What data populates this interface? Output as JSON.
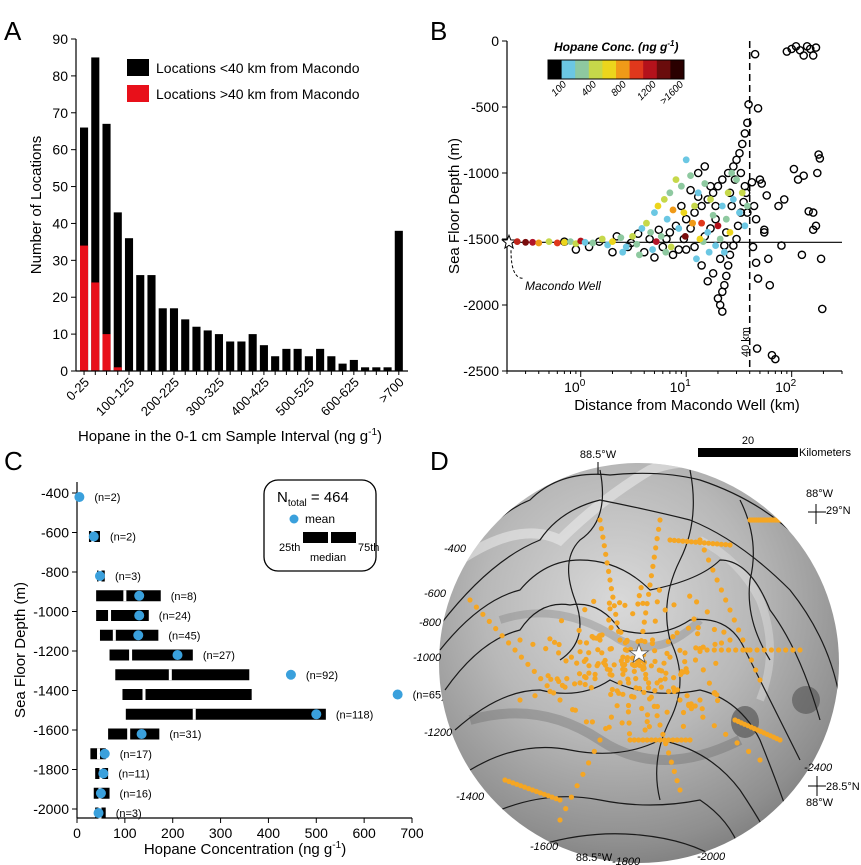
{
  "panels": {
    "a": "A",
    "b": "B",
    "c": "C",
    "d": "D"
  },
  "chart_data": [
    {
      "panel": "A",
      "type": "bar",
      "xlabel": "Hopane in the 0-1 cm Sample Interval (ng g",
      "xlabel_sup": "-1",
      "xlabel_end": ")",
      "ylabel": "Number of Locations",
      "ylim": [
        0,
        90
      ],
      "yticks": [
        0,
        10,
        20,
        30,
        40,
        50,
        60,
        70,
        80,
        90
      ],
      "tick_labels": [
        "0-25",
        "100-125",
        "200-225",
        "300-325",
        "400-425",
        "500-525",
        "600-625",
        ">700"
      ],
      "tick_label_bins": [
        0,
        4,
        8,
        12,
        16,
        20,
        24,
        28
      ],
      "legend": [
        "Locations <40 km from Macondo",
        "Locations >40 km from Macondo"
      ],
      "legend_position": "top-right",
      "colors": {
        "near": "#000000",
        "far": "#e8101a"
      },
      "series": [
        {
          "name": "Locations <40 km from Macondo",
          "values": [
            66,
            85,
            67,
            43,
            36,
            26,
            26,
            17,
            17,
            14,
            12,
            11,
            10,
            8,
            8,
            10,
            7,
            4,
            6,
            6,
            4,
            6,
            4,
            2,
            3,
            1,
            1,
            1,
            38
          ]
        },
        {
          "name": "Locations >40 km from Macondo",
          "values": [
            34,
            24,
            10,
            1,
            0,
            0,
            0,
            0,
            0,
            0,
            0,
            0,
            0,
            0,
            0,
            0,
            0,
            0,
            0,
            0,
            0,
            0,
            0,
            0,
            0,
            0,
            0,
            0,
            0
          ]
        }
      ]
    },
    {
      "panel": "B",
      "type": "scatter",
      "xlabel": "Distance from Macondo Well (km)",
      "ylabel": "Sea Floor Depth (m)",
      "xscale": "log",
      "xlim": [
        0.2,
        300
      ],
      "xticks": [
        "10",
        "10",
        "10"
      ],
      "xtick_exponents": [
        "0",
        "1",
        "2"
      ],
      "ylim": [
        -2500,
        0
      ],
      "yticks": [
        "0",
        "-500",
        "-1000",
        "-1500",
        "-2000",
        "-2500"
      ],
      "colorbar_title": "Hopane Conc. (ng g",
      "colorbar_sup": "-1",
      "colorbar_end": ")",
      "colorbar_ticks": [
        "100",
        "400",
        "800",
        "1200",
        ">1600"
      ],
      "colorbar_colors": [
        "#000000",
        "#6bc7e3",
        "#8ec9a0",
        "#c6d84a",
        "#ecd51c",
        "#f09a18",
        "#e0381c",
        "#b4121b",
        "#6a0c0c",
        "#2a0000"
      ],
      "vertical_line_label": "40 km",
      "vertical_line_x": 40,
      "horizontal_line_y": -1525,
      "annotation": "Macondo Well",
      "points_far": [
        [
          45,
          -100
        ],
        [
          48,
          -510
        ],
        [
          50,
          -1050
        ],
        [
          52,
          -1080
        ],
        [
          55,
          -1430
        ],
        [
          60,
          -1650
        ],
        [
          62,
          -1850
        ],
        [
          47,
          -2330
        ],
        [
          65,
          -2380
        ],
        [
          70,
          -2410
        ],
        [
          75,
          -1250
        ],
        [
          80,
          -1550
        ],
        [
          55,
          -1450
        ],
        [
          58,
          -1170
        ],
        [
          90,
          -80
        ],
        [
          100,
          -60
        ],
        [
          110,
          -40
        ],
        [
          120,
          -70
        ],
        [
          140,
          -40
        ],
        [
          150,
          -60
        ],
        [
          160,
          -110
        ],
        [
          170,
          -50
        ],
        [
          130,
          -110
        ],
        [
          115,
          -1050
        ],
        [
          130,
          -1020
        ],
        [
          145,
          -1290
        ],
        [
          160,
          -1300
        ],
        [
          170,
          -1400
        ],
        [
          180,
          -860
        ],
        [
          185,
          -890
        ],
        [
          175,
          -1000
        ],
        [
          190,
          -1650
        ],
        [
          195,
          -2030
        ],
        [
          160,
          -1430
        ],
        [
          125,
          -1620
        ],
        [
          105,
          -970
        ],
        [
          85,
          -1200
        ],
        [
          42,
          -1070
        ],
        [
          44,
          -1250
        ],
        [
          46,
          -1350
        ],
        [
          43,
          -1560
        ],
        [
          46,
          -1680
        ],
        [
          48,
          -1800
        ]
      ],
      "points_near_black": [
        [
          0.9,
          -1580
        ],
        [
          1.5,
          -1520
        ],
        [
          2.2,
          -1480
        ],
        [
          3.0,
          -1530
        ],
        [
          4.0,
          -1600
        ],
        [
          5.0,
          -1640
        ],
        [
          6.0,
          -1560
        ],
        [
          7.0,
          -1450
        ],
        [
          8.0,
          -1400
        ],
        [
          10,
          -1350
        ],
        [
          12,
          -1300
        ],
        [
          14,
          -1250
        ],
        [
          16,
          -1200
        ],
        [
          18,
          -1150
        ],
        [
          20,
          -1100
        ],
        [
          22,
          -1050
        ],
        [
          25,
          -1000
        ],
        [
          28,
          -950
        ],
        [
          30,
          -900
        ],
        [
          32,
          -850
        ],
        [
          34,
          -780
        ],
        [
          36,
          -700
        ],
        [
          38,
          -620
        ],
        [
          39,
          -480
        ],
        [
          37,
          -1150
        ],
        [
          35,
          -1220
        ],
        [
          33,
          -1300
        ],
        [
          31,
          -1400
        ],
        [
          30,
          -1500
        ],
        [
          28,
          -1550
        ],
        [
          26,
          -1620
        ],
        [
          25,
          -1700
        ],
        [
          24,
          -1780
        ],
        [
          23,
          -1850
        ],
        [
          22,
          -1900
        ],
        [
          20,
          -1950
        ],
        [
          21,
          -2000
        ],
        [
          22,
          -2050
        ],
        [
          18,
          -1760
        ],
        [
          16,
          -1820
        ],
        [
          14,
          -1700
        ],
        [
          12,
          -1560
        ],
        [
          15,
          -1480
        ],
        [
          17,
          -1420
        ],
        [
          19,
          -1350
        ],
        [
          13,
          -1180
        ],
        [
          11,
          -1130
        ],
        [
          9,
          -1250
        ],
        [
          9.5,
          -1500
        ],
        [
          8.5,
          -1580
        ],
        [
          7.5,
          -1620
        ],
        [
          6.5,
          -1500
        ],
        [
          5.5,
          -1430
        ],
        [
          4.5,
          -1500
        ],
        [
          3.5,
          -1460
        ],
        [
          2.8,
          -1560
        ],
        [
          2.0,
          -1600
        ],
        [
          1.2,
          -1560
        ],
        [
          0.7,
          -1520
        ],
        [
          26,
          -1150
        ],
        [
          29,
          -1050
        ],
        [
          33,
          -1000
        ],
        [
          36,
          -1100
        ],
        [
          38,
          -1300
        ],
        [
          27,
          -1250
        ],
        [
          24,
          -1450
        ],
        [
          23,
          -1550
        ],
        [
          21,
          -1650
        ],
        [
          19,
          -1250
        ],
        [
          17,
          -1100
        ],
        [
          15,
          -950
        ],
        [
          13,
          -1000
        ],
        [
          11,
          -1420
        ],
        [
          10,
          -1580
        ]
      ],
      "points_near_color": [
        [
          0.25,
          -1520,
          "#c0261b"
        ],
        [
          0.3,
          -1525,
          "#7a0d0d"
        ],
        [
          0.35,
          -1525,
          "#b2142a"
        ],
        [
          0.4,
          -1530,
          "#f09a18"
        ],
        [
          0.5,
          -1520,
          "#c6d84a"
        ],
        [
          0.6,
          -1530,
          "#e0381c"
        ],
        [
          0.7,
          -1525,
          "#ecd51c"
        ],
        [
          0.8,
          -1520,
          "#8ec9a0"
        ],
        [
          0.9,
          -1535,
          "#c6d84a"
        ],
        [
          1.0,
          -1515,
          "#b4121b"
        ],
        [
          1.1,
          -1525,
          "#6bc7e3"
        ],
        [
          1.3,
          -1530,
          "#8ec9a0"
        ],
        [
          1.6,
          -1500,
          "#c6d84a"
        ],
        [
          1.8,
          -1545,
          "#6bc7e3"
        ],
        [
          2.0,
          -1520,
          "#ecd51c"
        ],
        [
          2.4,
          -1490,
          "#8ec9a0"
        ],
        [
          2.7,
          -1560,
          "#6bc7e3"
        ],
        [
          3.1,
          -1480,
          "#c6d84a"
        ],
        [
          3.4,
          -1540,
          "#8ec9a0"
        ],
        [
          3.8,
          -1420,
          "#6bc7e3"
        ],
        [
          4.2,
          -1380,
          "#c6d84a"
        ],
        [
          4.6,
          -1450,
          "#8ec9a0"
        ],
        [
          5.0,
          -1300,
          "#6bc7e3"
        ],
        [
          5.4,
          -1250,
          "#ecd51c"
        ],
        [
          5.8,
          -1480,
          "#8ec9a0"
        ],
        [
          6.2,
          -1200,
          "#c6d84a"
        ],
        [
          6.6,
          -1350,
          "#6bc7e3"
        ],
        [
          7.0,
          -1150,
          "#8ec9a0"
        ],
        [
          7.5,
          -1280,
          "#f09a18"
        ],
        [
          8.0,
          -1050,
          "#c6d84a"
        ],
        [
          8.5,
          -1420,
          "#6bc7e3"
        ],
        [
          9.0,
          -1100,
          "#8ec9a0"
        ],
        [
          9.5,
          -1300,
          "#ecd51c"
        ],
        [
          10,
          -900,
          "#6bc7e3"
        ],
        [
          11,
          -1020,
          "#8ec9a0"
        ],
        [
          12,
          -1250,
          "#c6d84a"
        ],
        [
          13,
          -1150,
          "#6bc7e3"
        ],
        [
          14,
          -1380,
          "#e0381c"
        ],
        [
          15,
          -1080,
          "#8ec9a0"
        ],
        [
          16,
          -1450,
          "#6bc7e3"
        ],
        [
          17,
          -1200,
          "#c6d84a"
        ],
        [
          18,
          -1320,
          "#8ec9a0"
        ],
        [
          19,
          -1550,
          "#6bc7e3"
        ],
        [
          20,
          -1400,
          "#b4121b"
        ],
        [
          22,
          -1250,
          "#6bc7e3"
        ],
        [
          24,
          -1350,
          "#8ec9a0"
        ],
        [
          26,
          -1450,
          "#ecd51c"
        ],
        [
          28,
          -1200,
          "#6bc7e3"
        ],
        [
          30,
          -1050,
          "#8ec9a0"
        ],
        [
          32,
          -1300,
          "#6bc7e3"
        ],
        [
          34,
          -1150,
          "#c6d84a"
        ],
        [
          36,
          -1400,
          "#6bc7e3"
        ],
        [
          38,
          -1250,
          "#8ec9a0"
        ],
        [
          2.5,
          -1600,
          "#6bc7e3"
        ],
        [
          3.6,
          -1620,
          "#8ec9a0"
        ],
        [
          4.8,
          -1580,
          "#6bc7e3"
        ],
        [
          6.4,
          -1600,
          "#8ec9a0"
        ],
        [
          7.2,
          -1560,
          "#c6d84a"
        ],
        [
          12.5,
          -1650,
          "#6bc7e3"
        ],
        [
          14.5,
          -1520,
          "#8ec9a0"
        ],
        [
          16.5,
          -1600,
          "#6bc7e3"
        ],
        [
          21,
          -1500,
          "#8ec9a0"
        ],
        [
          23,
          -1600,
          "#6bc7e3"
        ],
        [
          25,
          -1150,
          "#c6d84a"
        ],
        [
          27,
          -1000,
          "#8ec9a0"
        ],
        [
          9.8,
          -1480,
          "#7a0d0d"
        ],
        [
          5.2,
          -1520,
          "#b2142a"
        ],
        [
          11.5,
          -1380,
          "#f09a18"
        ],
        [
          13.5,
          -1500,
          "#ecd51c"
        ]
      ]
    },
    {
      "panel": "C",
      "type": "box",
      "xlabel": "Hopane Concentration (ng g",
      "xlabel_sup": "-1",
      "xlabel_end": ")",
      "ylabel": "Sea Floor Depth (m)",
      "xlim": [
        0,
        700
      ],
      "xticks": [
        0,
        100,
        200,
        300,
        400,
        500,
        600,
        700
      ],
      "ylim": [
        -2050,
        -400
      ],
      "yticks": [
        -400,
        -600,
        -800,
        -1000,
        -1200,
        -1400,
        -1600,
        -1800,
        -2000
      ],
      "legend_total": "N",
      "legend_total_sub": "total",
      "legend_total_value": " = 464",
      "legend_mean": "mean",
      "legend_q1": "25th",
      "legend_median": "median",
      "legend_q3": "75th",
      "mean_color": "#3aa0dc",
      "rows": [
        {
          "depth": -450,
          "q1": 0,
          "median": 0,
          "q3": 0,
          "mean": 5,
          "n": "(n=2)"
        },
        {
          "depth": -650,
          "q1": 25,
          "median": 33,
          "q3": 48,
          "mean": 35,
          "n": "(n=2)"
        },
        {
          "depth": -850,
          "q1": 42,
          "median": 48,
          "q3": 58,
          "mean": 48,
          "n": "(n=3)"
        },
        {
          "depth": -950,
          "q1": 40,
          "median": 100,
          "q3": 175,
          "mean": 130,
          "n": "(n=8)"
        },
        {
          "depth": -1050,
          "q1": 40,
          "median": 68,
          "q3": 150,
          "mean": 130,
          "n": "(n=24)"
        },
        {
          "depth": -1150,
          "q1": 48,
          "median": 78,
          "q3": 170,
          "mean": 128,
          "n": "(n=45)"
        },
        {
          "depth": -1250,
          "q1": 68,
          "median": 112,
          "q3": 242,
          "mean": 210,
          "n": "(n=27)"
        },
        {
          "depth": -1350,
          "q1": 80,
          "median": 195,
          "q3": 360,
          "mean": 447,
          "n": "(n=92)"
        },
        {
          "depth": -1450,
          "q1": 95,
          "median": 140,
          "q3": 365,
          "mean": 670,
          "n": "(n=65)"
        },
        {
          "depth": -1550,
          "q1": 102,
          "median": 245,
          "q3": 520,
          "mean": 500,
          "n": "(n=118)"
        },
        {
          "depth": -1650,
          "q1": 65,
          "median": 108,
          "q3": 172,
          "mean": 135,
          "n": "(n=31)"
        },
        {
          "depth": -1750,
          "q1": 28,
          "median": 45,
          "q3": 60,
          "mean": 58,
          "n": "(n=17)"
        },
        {
          "depth": -1850,
          "q1": 38,
          "median": 50,
          "q3": 65,
          "mean": 55,
          "n": "(n=11)"
        },
        {
          "depth": -1950,
          "q1": 35,
          "median": 48,
          "q3": 68,
          "mean": 50,
          "n": "(n=16)"
        },
        {
          "depth": -2050,
          "q1": 38,
          "median": 48,
          "q3": 60,
          "mean": 45,
          "n": "(n=3)"
        }
      ]
    }
  ],
  "map": {
    "scale_value": "20",
    "scale_unit": "Kilometers",
    "lon_top": "88.5°W",
    "lon_bottom": "88.5°W",
    "lon_right_top": "88°W",
    "lat_right_top": "29°N",
    "lon_right_bottom": "88°W",
    "lat_right_bottom": "28.5°N",
    "contours": [
      "-400",
      "-600",
      "-800",
      "-1000",
      "-1200",
      "-1400",
      "-1600",
      "-1800",
      "-2000",
      "-2400"
    ],
    "sample_color": "#f5a623",
    "well_marker": "star"
  }
}
